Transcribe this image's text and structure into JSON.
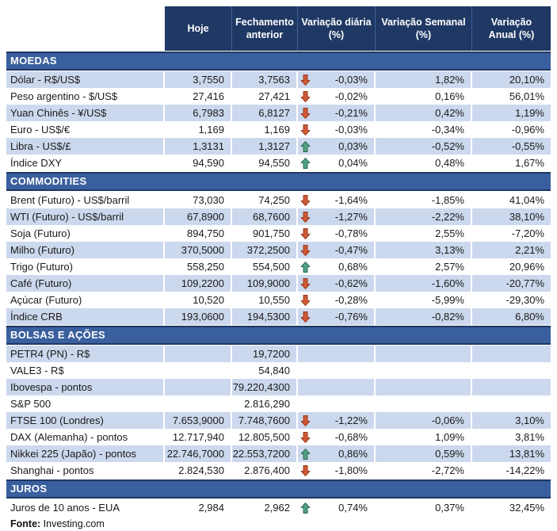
{
  "chart_data": {
    "type": "table",
    "columns": [
      "Hoje",
      "Fechamento\nanterior",
      "Variação diária\n(%)",
      "Variação Semanal\n(%)",
      "Variação\nAnual (%)"
    ],
    "sections": [
      {
        "title": "MOEDAS",
        "slug": "moedas",
        "first_row_striped": true,
        "rows": [
          {
            "label": "Dólar - R$/US$",
            "hoje": "3,7550",
            "fechamento": "3,7563",
            "arrow": "down",
            "var_diaria": "-0,03%",
            "var_semanal": "1,82%",
            "var_anual": "20,10%"
          },
          {
            "label": "Peso argentino - $/US$",
            "hoje": "27,416",
            "fechamento": "27,421",
            "arrow": "down",
            "var_diaria": "-0,02%",
            "var_semanal": "0,16%",
            "var_anual": "56,01%"
          },
          {
            "label": "Yuan Chinês - ¥/US$",
            "hoje": "6,7983",
            "fechamento": "6,8127",
            "arrow": "down",
            "var_diaria": "-0,21%",
            "var_semanal": "0,42%",
            "var_anual": "1,19%"
          },
          {
            "label": "Euro - US$/€",
            "hoje": "1,169",
            "fechamento": "1,169",
            "arrow": "down",
            "var_diaria": "-0,03%",
            "var_semanal": "-0,34%",
            "var_anual": "-0,96%"
          },
          {
            "label": "Libra - US$/£",
            "hoje": "1,3131",
            "fechamento": "1,3127",
            "arrow": "up",
            "var_diaria": "0,03%",
            "var_semanal": "-0,52%",
            "var_anual": "-0,55%"
          },
          {
            "label": "Índice DXY",
            "hoje": "94,590",
            "fechamento": "94,550",
            "arrow": "up",
            "var_diaria": "0,04%",
            "var_semanal": "0,48%",
            "var_anual": "1,67%"
          }
        ]
      },
      {
        "title": "COMMODITIES",
        "slug": "commodities",
        "first_row_striped": false,
        "rows": [
          {
            "label": "Brent (Futuro) - US$/barril",
            "hoje": "73,030",
            "fechamento": "74,250",
            "arrow": "down",
            "var_diaria": "-1,64%",
            "var_semanal": "-1,85%",
            "var_anual": "41,04%"
          },
          {
            "label": "WTI (Futuro) - US$/barril",
            "hoje": "67,8900",
            "fechamento": "68,7600",
            "arrow": "down",
            "var_diaria": "-1,27%",
            "var_semanal": "-2,22%",
            "var_anual": "38,10%"
          },
          {
            "label": "Soja (Futuro)",
            "hoje": "894,750",
            "fechamento": "901,750",
            "arrow": "down",
            "var_diaria": "-0,78%",
            "var_semanal": "2,55%",
            "var_anual": "-7,20%"
          },
          {
            "label": "Milho (Futuro)",
            "hoje": "370,5000",
            "fechamento": "372,2500",
            "arrow": "down",
            "var_diaria": "-0,47%",
            "var_semanal": "3,13%",
            "var_anual": "2,21%"
          },
          {
            "label": "Trigo (Futuro)",
            "hoje": "558,250",
            "fechamento": "554,500",
            "arrow": "up",
            "var_diaria": "0,68%",
            "var_semanal": "2,57%",
            "var_anual": "20,96%"
          },
          {
            "label": "Café (Futuro)",
            "hoje": "109,2200",
            "fechamento": "109,9000",
            "arrow": "down",
            "var_diaria": "-0,62%",
            "var_semanal": "-1,60%",
            "var_anual": "-20,77%"
          },
          {
            "label": "Açúcar (Futuro)",
            "hoje": "10,520",
            "fechamento": "10,550",
            "arrow": "down",
            "var_diaria": "-0,28%",
            "var_semanal": "-5,99%",
            "var_anual": "-29,30%"
          },
          {
            "label": "Índice CRB",
            "hoje": "193,0600",
            "fechamento": "194,5300",
            "arrow": "down",
            "var_diaria": "-0,76%",
            "var_semanal": "-0,82%",
            "var_anual": "6,80%"
          }
        ]
      },
      {
        "title": "BOLSAS E AÇÕES",
        "slug": "bolsas-e-acoes",
        "first_row_striped": true,
        "rows": [
          {
            "label": "PETR4 (PN) - R$",
            "hoje": "",
            "fechamento": "19,7200",
            "arrow": "",
            "var_diaria": "",
            "var_semanal": "",
            "var_anual": ""
          },
          {
            "label": "VALE3 - R$",
            "hoje": "",
            "fechamento": "54,840",
            "arrow": "",
            "var_diaria": "",
            "var_semanal": "",
            "var_anual": ""
          },
          {
            "label": "Ibovespa - pontos",
            "hoje": "",
            "fechamento": "79.220,4300",
            "arrow": "",
            "var_diaria": "",
            "var_semanal": "",
            "var_anual": ""
          },
          {
            "label": "S&P 500",
            "hoje": "",
            "fechamento": "2.816,290",
            "arrow": "",
            "var_diaria": "",
            "var_semanal": "",
            "var_anual": ""
          },
          {
            "label": "FTSE 100 (Londres)",
            "hoje": "7.653,9000",
            "fechamento": "7.748,7600",
            "arrow": "down",
            "var_diaria": "-1,22%",
            "var_semanal": "-0,06%",
            "var_anual": "3,10%"
          },
          {
            "label": "DAX (Alemanha) - pontos",
            "hoje": "12.717,940",
            "fechamento": "12.805,500",
            "arrow": "down",
            "var_diaria": "-0,68%",
            "var_semanal": "1,09%",
            "var_anual": "3,81%"
          },
          {
            "label": "Nikkei 225 (Japão) - pontos",
            "hoje": "22.746,7000",
            "fechamento": "22.553,7200",
            "arrow": "up",
            "var_diaria": "0,86%",
            "var_semanal": "0,59%",
            "var_anual": "13,81%"
          },
          {
            "label": "Shanghai - pontos",
            "hoje": "2.824,530",
            "fechamento": "2.876,400",
            "arrow": "down",
            "var_diaria": "-1,80%",
            "var_semanal": "-2,72%",
            "var_anual": "-14,22%"
          }
        ]
      },
      {
        "title": "JUROS",
        "slug": "juros",
        "first_row_striped": false,
        "rows": [
          {
            "label": "Juros de 10 anos - EUA",
            "hoje": "2,984",
            "fechamento": "2,962",
            "arrow": "up",
            "var_diaria": "0,74%",
            "var_semanal": "0,37%",
            "var_anual": "32,45%"
          }
        ]
      }
    ],
    "title": "",
    "legend_position": "none",
    "grid": "off"
  },
  "footer": {
    "source_label": "Fonte:",
    "source_value": " Investing.com"
  },
  "colors": {
    "header_bg": "#1F3864",
    "section_bg": "#3A5F9E",
    "section_border": "#1F3864",
    "stripe_bg": "#CCD8ED",
    "text": "#1A1A1A",
    "header_text": "#FFFFFF",
    "down_arrow_fill": "#CE5B35",
    "down_arrow_stroke": "#9E3A22",
    "up_arrow_fill": "#53A284",
    "up_arrow_stroke": "#2E6E55"
  }
}
